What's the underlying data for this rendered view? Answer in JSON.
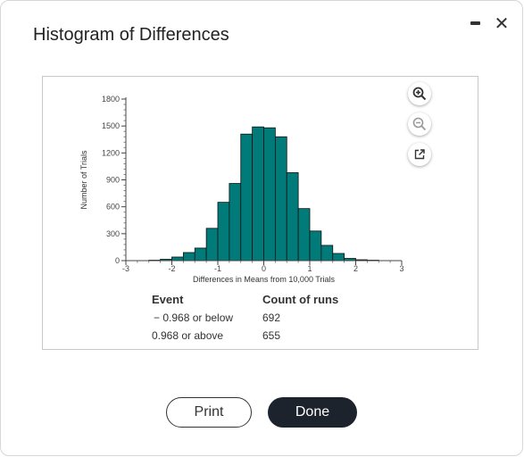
{
  "dialog": {
    "title": "Histogram of Differences",
    "window_controls": {
      "minimize_icon": "minimize-icon",
      "close_icon": "close-icon",
      "close_glyph": "✕"
    }
  },
  "toolbar": {
    "zoom_in_icon": "zoom-in-icon",
    "zoom_out_icon": "zoom-out-icon",
    "popout_icon": "external-link-icon"
  },
  "chart_data": {
    "type": "bar",
    "xlabel": "Differences in Means from 10,000 Trials",
    "ylabel": "Number of Trials",
    "xlim": [
      -3,
      3
    ],
    "ylim": [
      0,
      1800
    ],
    "x_ticks": [
      "-3",
      "-2",
      "-1",
      "0",
      "1",
      "2",
      "3"
    ],
    "y_ticks": [
      "0",
      "300",
      "600",
      "900",
      "1200",
      "1500",
      "1800"
    ],
    "bin_width": 0.25,
    "bin_starts": [
      -2.5,
      -2.25,
      -2.0,
      -1.75,
      -1.5,
      -1.25,
      -1.0,
      -0.75,
      -0.5,
      -0.25,
      0.0,
      0.25,
      0.5,
      0.75,
      1.0,
      1.25,
      1.5,
      1.75,
      2.0,
      2.25
    ],
    "values": [
      5,
      15,
      40,
      90,
      140,
      360,
      650,
      860,
      1410,
      1490,
      1480,
      1380,
      980,
      580,
      330,
      170,
      80,
      25,
      10,
      5
    ],
    "bar_color": "#007b7a",
    "grid": false
  },
  "events": {
    "headers": [
      "Event",
      "Count of runs"
    ],
    "rows": [
      {
        "event": "− 0.968 or below",
        "count": "692"
      },
      {
        "event": "0.968 or above",
        "count": "655"
      }
    ]
  },
  "buttons": {
    "print": "Print",
    "done": "Done"
  }
}
